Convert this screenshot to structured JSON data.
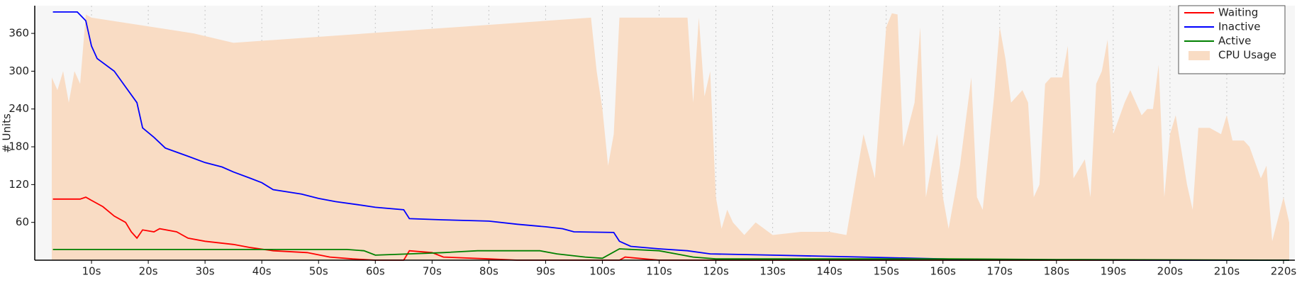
{
  "chart_data": {
    "type": "line",
    "y_label": "# Units",
    "xlim": [
      0,
      222
    ],
    "ylim": [
      0,
      404
    ],
    "xticks": [
      {
        "value": 10,
        "label": "10s"
      },
      {
        "value": 20,
        "label": "20s"
      },
      {
        "value": 30,
        "label": "30s"
      },
      {
        "value": 40,
        "label": "40s"
      },
      {
        "value": 50,
        "label": "50s"
      },
      {
        "value": 60,
        "label": "60s"
      },
      {
        "value": 70,
        "label": "70s"
      },
      {
        "value": 80,
        "label": "80s"
      },
      {
        "value": 90,
        "label": "90s"
      },
      {
        "value": 100,
        "label": "100s"
      },
      {
        "value": 110,
        "label": "110s"
      },
      {
        "value": 120,
        "label": "120s"
      },
      {
        "value": 130,
        "label": "130s"
      },
      {
        "value": 140,
        "label": "140s"
      },
      {
        "value": 150,
        "label": "150s"
      },
      {
        "value": 160,
        "label": "160s"
      },
      {
        "value": 170,
        "label": "170s"
      },
      {
        "value": 180,
        "label": "180s"
      },
      {
        "value": 190,
        "label": "190s"
      },
      {
        "value": 200,
        "label": "200s"
      },
      {
        "value": 210,
        "label": "210s"
      },
      {
        "value": 220,
        "label": "220s"
      }
    ],
    "yticks": [
      60,
      120,
      180,
      240,
      300,
      360
    ],
    "x_grid": true,
    "legend": "upper right",
    "series": [
      {
        "name": "Waiting",
        "color": "#ff0000",
        "kind": "line",
        "x": [
          3.2,
          8,
          9,
          10,
          12,
          14,
          16,
          17,
          18,
          19,
          21,
          22,
          25,
          27,
          30,
          35,
          38,
          42,
          48,
          52,
          56,
          60,
          65,
          66,
          70,
          72,
          80,
          85,
          103,
          104,
          110,
          221
        ],
        "values": [
          97,
          97,
          100,
          95,
          85,
          70,
          60,
          45,
          35,
          48,
          45,
          50,
          45,
          35,
          30,
          25,
          20,
          15,
          12,
          5,
          2,
          0,
          0,
          15,
          12,
          5,
          2,
          0,
          0,
          5,
          0,
          0
        ]
      },
      {
        "name": "Inactive",
        "color": "#0000ff",
        "kind": "line",
        "x": [
          3.2,
          7.5,
          9,
          10,
          11,
          14,
          16,
          18,
          19,
          21,
          23,
          27,
          30,
          33,
          35,
          38,
          40,
          42,
          47,
          50,
          53,
          57,
          60,
          65,
          66,
          72,
          80,
          85,
          90,
          93,
          95,
          102,
          103,
          105,
          110,
          115,
          119,
          130,
          146,
          155,
          165,
          200,
          221
        ],
        "values": [
          394,
          394,
          380,
          340,
          320,
          300,
          275,
          250,
          210,
          195,
          178,
          165,
          155,
          148,
          140,
          130,
          123,
          112,
          105,
          98,
          93,
          88,
          84,
          80,
          66,
          64,
          62,
          57,
          53,
          50,
          45,
          44,
          30,
          22,
          18,
          15,
          10,
          8,
          5,
          3,
          1,
          0,
          0
        ]
      },
      {
        "name": "Active",
        "color": "#008000",
        "kind": "line",
        "x": [
          3.2,
          55,
          58,
          60,
          66,
          72,
          78,
          89,
          92,
          97,
          100,
          103,
          110,
          113,
          116,
          120,
          160,
          180,
          221
        ],
        "values": [
          17,
          17,
          15,
          8,
          10,
          12,
          15,
          15,
          10,
          5,
          3,
          18,
          15,
          10,
          5,
          2,
          2,
          1,
          0
        ]
      },
      {
        "name": "CPU Usage",
        "color": "#f9dcc4",
        "kind": "area",
        "x": [
          3,
          4,
          5,
          6,
          7,
          8,
          9,
          10,
          28,
          35,
          98,
          99,
          100,
          101,
          102,
          103,
          115,
          116,
          117,
          118,
          119,
          120,
          121,
          122,
          123,
          125,
          127,
          130,
          135,
          140,
          143,
          146,
          148,
          150,
          151,
          152,
          153,
          155,
          156,
          157,
          159,
          160,
          161,
          163,
          165,
          166,
          167,
          169,
          170,
          171,
          172,
          173,
          174,
          175,
          176,
          177,
          178,
          179,
          181,
          182,
          183,
          185,
          186,
          187,
          188,
          189,
          190,
          192,
          193,
          195,
          196,
          197,
          198,
          199,
          200,
          201,
          203,
          204,
          205,
          207,
          209,
          210,
          211,
          213,
          214,
          216,
          217,
          218,
          220,
          221
        ],
        "values": [
          290,
          270,
          300,
          250,
          300,
          280,
          390,
          385,
          360,
          345,
          385,
          300,
          240,
          150,
          200,
          385,
          385,
          250,
          385,
          260,
          300,
          100,
          50,
          80,
          60,
          40,
          60,
          40,
          45,
          45,
          40,
          200,
          130,
          370,
          392,
          390,
          180,
          250,
          370,
          100,
          200,
          100,
          50,
          150,
          290,
          100,
          80,
          260,
          370,
          320,
          250,
          260,
          270,
          250,
          100,
          120,
          280,
          290,
          290,
          340,
          130,
          160,
          100,
          280,
          300,
          350,
          200,
          250,
          270,
          230,
          240,
          240,
          310,
          100,
          200,
          230,
          120,
          80,
          210,
          210,
          200,
          230,
          190,
          190,
          180,
          130,
          150,
          30,
          100,
          60
        ]
      }
    ]
  }
}
